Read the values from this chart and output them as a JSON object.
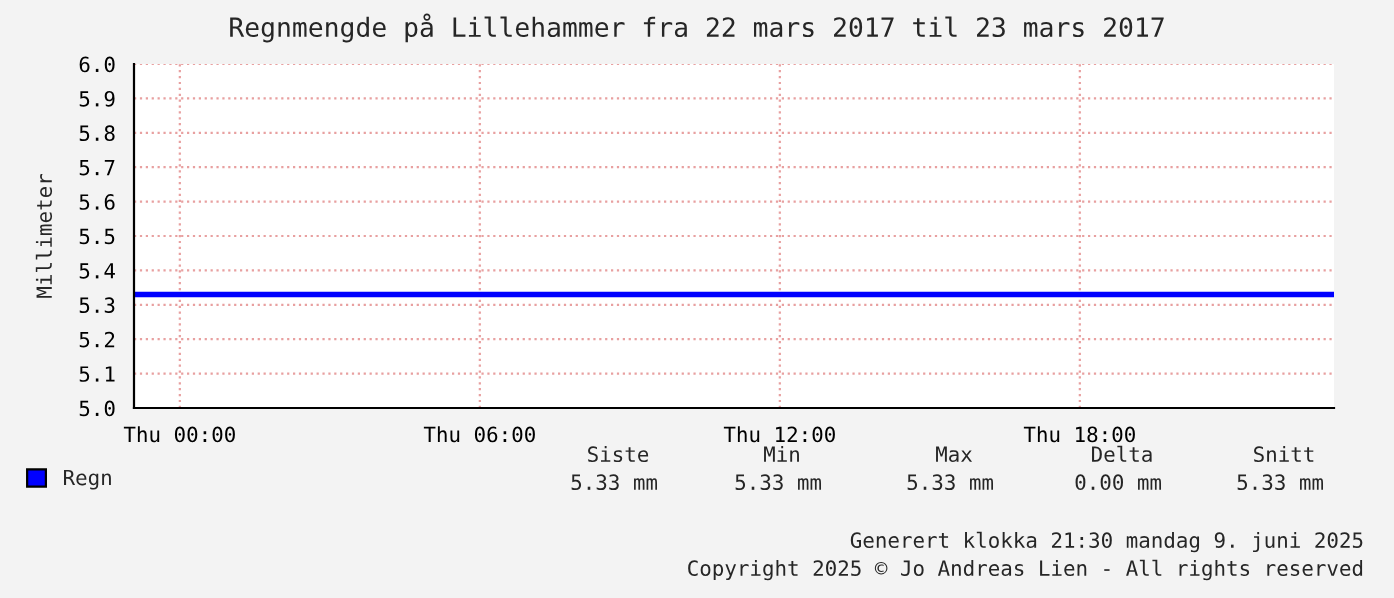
{
  "chart_data": {
    "type": "line",
    "title": "Regnmengde på Lillehammer fra 22 mars 2017 til 23 mars 2017",
    "ylabel": "Millimeter",
    "x": [
      "2017-03-22T23:05",
      "2017-03-23T23:05"
    ],
    "series": [
      {
        "name": "Regn",
        "color": "#0000ff",
        "values": [
          5.33,
          5.33
        ]
      }
    ],
    "xlim": [
      "2017-03-22T23:05",
      "2017-03-23T23:05"
    ],
    "xticks": [
      {
        "value": "2017-03-23T00:00",
        "label": "Thu 00:00"
      },
      {
        "value": "2017-03-23T06:00",
        "label": "Thu 06:00"
      },
      {
        "value": "2017-03-23T12:00",
        "label": "Thu 12:00"
      },
      {
        "value": "2017-03-23T18:00",
        "label": "Thu 18:00"
      }
    ],
    "ylim": [
      5.0,
      6.0
    ],
    "yticks": [
      {
        "value": 5.0,
        "label": "5.0"
      },
      {
        "value": 5.1,
        "label": "5.1"
      },
      {
        "value": 5.2,
        "label": "5.2"
      },
      {
        "value": 5.3,
        "label": "5.3"
      },
      {
        "value": 5.4,
        "label": "5.4"
      },
      {
        "value": 5.5,
        "label": "5.5"
      },
      {
        "value": 5.6,
        "label": "5.6"
      },
      {
        "value": 5.7,
        "label": "5.7"
      },
      {
        "value": 5.8,
        "label": "5.8"
      },
      {
        "value": 5.9,
        "label": "5.9"
      },
      {
        "value": 6.0,
        "label": "6.0"
      }
    ],
    "grid": true,
    "legend": "bottom left",
    "marker": "none",
    "line_style": "solid",
    "annotations": [
      "Siste",
      "Min",
      "Max",
      "Delta",
      "Snitt",
      "5.33 mm",
      "5.33 mm",
      "5.33 mm",
      "0.00 mm",
      "5.33 mm",
      "Generert klokka 21:30 mandag 9. juni 2025",
      "Copyright 2025 © Jo Andreas Lien - All rights reserved"
    ]
  }
}
